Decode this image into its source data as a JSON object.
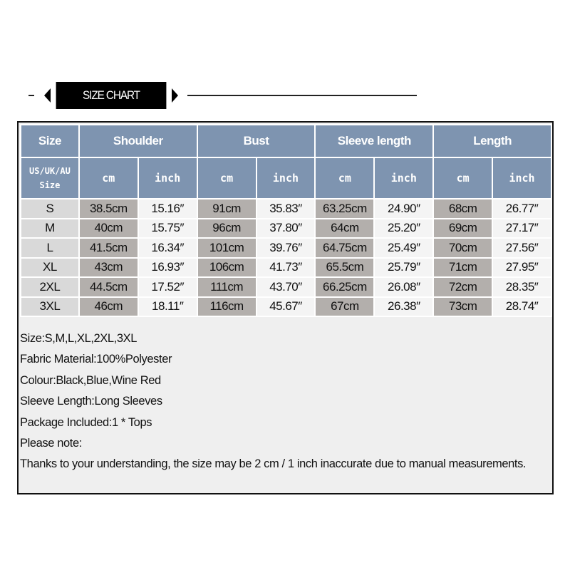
{
  "title": "SIZE CHART",
  "header": {
    "size": "Size",
    "groups": [
      "Shoulder",
      "Bust",
      "Sleeve length",
      "Length"
    ],
    "size_sub": [
      "US/UK/AU",
      "Size"
    ],
    "cm": "cm",
    "inch": "inch"
  },
  "rows": [
    {
      "size": "S",
      "v": [
        "38.5cm",
        "15.16″",
        "91cm",
        "35.83″",
        "63.25cm",
        "24.90″",
        "68cm",
        "26.77″"
      ]
    },
    {
      "size": "M",
      "v": [
        "40cm",
        "15.75″",
        "96cm",
        "37.80″",
        "64cm",
        "25.20″",
        "69cm",
        "27.17″"
      ]
    },
    {
      "size": "L",
      "v": [
        "41.5cm",
        "16.34″",
        "101cm",
        "39.76″",
        "64.75cm",
        "25.49″",
        "70cm",
        "27.56″"
      ]
    },
    {
      "size": "XL",
      "v": [
        "43cm",
        "16.93″",
        "106cm",
        "41.73″",
        "65.5cm",
        "25.79″",
        "71cm",
        "27.95″"
      ]
    },
    {
      "size": "2XL",
      "v": [
        "44.5cm",
        "17.52″",
        "111cm",
        "43.70″",
        "66.25cm",
        "26.08″",
        "72cm",
        "28.35″"
      ]
    },
    {
      "size": "3XL",
      "v": [
        "46cm",
        "18.11″",
        "116cm",
        "45.67″",
        "67cm",
        "26.38″",
        "73cm",
        "28.74″"
      ]
    }
  ],
  "info": [
    "Size:S,M,L,XL,2XL,3XL",
    "Fabric Material:100%Polyester",
    "Colour:Black,Blue,Wine Red",
    "Sleeve Length:Long Sleeves",
    "Package Included:1 * Tops",
    "Please note:",
    "Thanks to your understanding, the size may be 2 cm / 1 inch inaccurate due to manual measurements."
  ],
  "colors": {
    "header": "#7e94b0",
    "size_cell": "#d9d9d9",
    "cm_cell": "#b3afac",
    "inch_cell": "#f4f4f4"
  }
}
